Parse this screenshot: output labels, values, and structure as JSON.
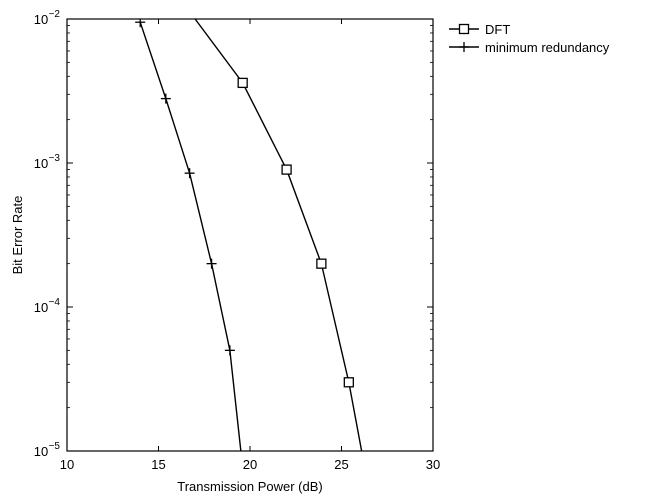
{
  "chart_data": {
    "type": "line",
    "title": "",
    "xlabel": "Transmission Power (dB)",
    "ylabel": "Bit Error Rate",
    "xlim": [
      10,
      30
    ],
    "ylim": [
      1e-05,
      0.01
    ],
    "yscale": "log",
    "grid": false,
    "legend_position": "outside-right-top",
    "x_ticks": [
      10,
      15,
      20,
      25,
      30
    ],
    "y_ticks": [
      {
        "value": 0.01,
        "mantissa": "10",
        "exponent": "−2"
      },
      {
        "value": 0.001,
        "mantissa": "10",
        "exponent": "−3"
      },
      {
        "value": 0.0001,
        "mantissa": "10",
        "exponent": "−4"
      },
      {
        "value": 1e-05,
        "mantissa": "10",
        "exponent": "−5"
      }
    ],
    "series": [
      {
        "name": "DFT",
        "marker": "square",
        "color": "#000000",
        "line_points": [
          {
            "x": 17.0,
            "y": 0.01
          },
          {
            "x": 19.6,
            "y": 0.0036
          },
          {
            "x": 22.0,
            "y": 0.0009
          },
          {
            "x": 23.9,
            "y": 0.0002
          },
          {
            "x": 25.4,
            "y": 3e-05
          },
          {
            "x": 26.1,
            "y": 1e-05
          }
        ],
        "marker_points": [
          {
            "x": 19.6,
            "y": 0.0036
          },
          {
            "x": 22.0,
            "y": 0.0009
          },
          {
            "x": 23.9,
            "y": 0.0002
          },
          {
            "x": 25.4,
            "y": 3e-05
          }
        ]
      },
      {
        "name": "minimum redundancy",
        "marker": "plus",
        "color": "#000000",
        "line_points": [
          {
            "x": 14.0,
            "y": 0.0095
          },
          {
            "x": 15.4,
            "y": 0.0028
          },
          {
            "x": 16.7,
            "y": 0.00085
          },
          {
            "x": 17.9,
            "y": 0.0002
          },
          {
            "x": 18.9,
            "y": 5e-05
          },
          {
            "x": 19.5,
            "y": 1e-05
          }
        ],
        "marker_points": [
          {
            "x": 14.0,
            "y": 0.0095
          },
          {
            "x": 15.4,
            "y": 0.0028
          },
          {
            "x": 16.7,
            "y": 0.00085
          },
          {
            "x": 17.9,
            "y": 0.0002
          },
          {
            "x": 18.9,
            "y": 5e-05
          }
        ]
      }
    ]
  }
}
